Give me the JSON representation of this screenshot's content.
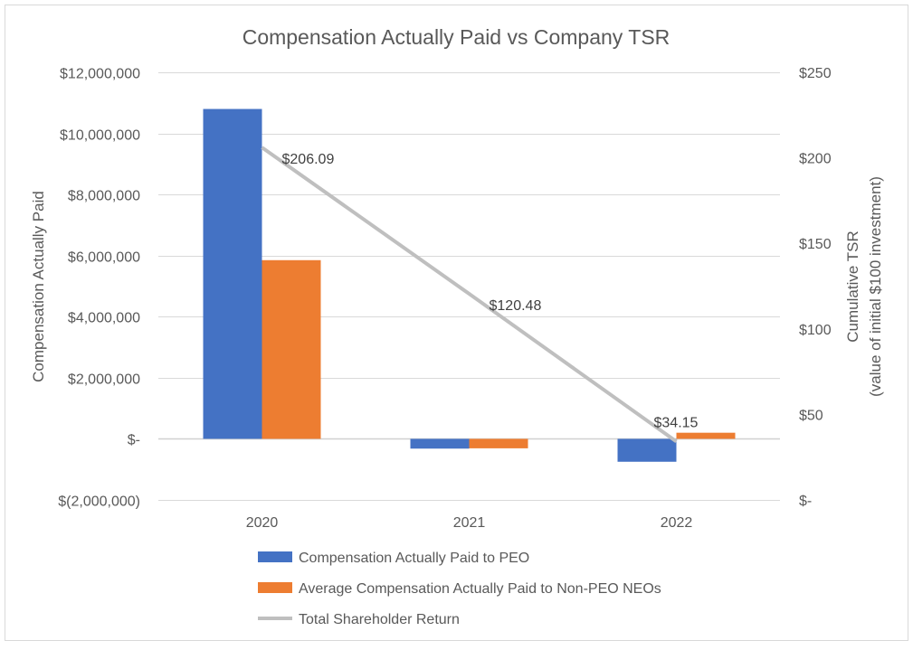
{
  "chart_data": {
    "type": "bar",
    "title": "Compensation Actually Paid vs Company TSR",
    "categories": [
      "2020",
      "2021",
      "2022"
    ],
    "y_left": {
      "label": "Compensation Actually Paid",
      "min": -2000000,
      "max": 12000000,
      "ticks": [
        12000000,
        10000000,
        8000000,
        6000000,
        4000000,
        2000000,
        0,
        -2000000
      ],
      "tick_labels": [
        "$12,000,000",
        "$10,000,000",
        "$8,000,000",
        "$6,000,000",
        "$4,000,000",
        "$2,000,000",
        "$-",
        "$(2,000,000)"
      ]
    },
    "y_right": {
      "label_line1": "Cumulative TSR",
      "label_line2": "(value of initial $100 investment)",
      "min": 0,
      "max": 250,
      "ticks": [
        250,
        200,
        150,
        100,
        50,
        0
      ],
      "tick_labels": [
        "$250",
        "$200",
        "$150",
        "$100",
        "$50",
        "$-"
      ]
    },
    "series": [
      {
        "name": "Compensation Actually Paid to PEO",
        "kind": "bar",
        "axis": "left",
        "color": "#4472C4",
        "values": [
          10800000,
          -320000,
          -750000
        ]
      },
      {
        "name": "Average Compensation Actually Paid to Non-PEO NEOs",
        "kind": "bar",
        "axis": "left",
        "color": "#ED7D31",
        "values": [
          5850000,
          -310000,
          200000
        ]
      },
      {
        "name": "Total Shareholder Return",
        "kind": "line",
        "axis": "right",
        "color": "#BFBFBF",
        "values": [
          206.09,
          120.48,
          34.15
        ],
        "data_labels": [
          "$206.09",
          "$120.48",
          "$34.15"
        ]
      }
    ],
    "legend_position": "bottom",
    "grid": true
  }
}
